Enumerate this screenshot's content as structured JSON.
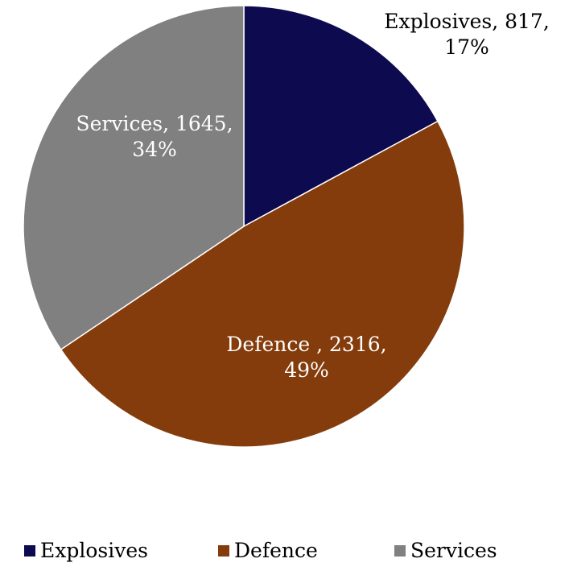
{
  "chart_data": {
    "type": "pie",
    "title": "",
    "slices": [
      {
        "name": "Explosives",
        "value": 817,
        "percent": "17%",
        "color": "#0d0a4f",
        "label_line1": "Explosives, 817,",
        "label_line2": "17%",
        "label_color": "#000000"
      },
      {
        "name": "Defence",
        "value": 2316,
        "percent": "49%",
        "color": "#843c0c",
        "label_line1": "Defence , 2316,",
        "label_line2": "49%",
        "label_color": "#ffffff"
      },
      {
        "name": "Services",
        "value": 1645,
        "percent": "34%",
        "color": "#808080",
        "label_line1": "Services, 1645,",
        "label_line2": "34%",
        "label_color": "#ffffff"
      }
    ],
    "legend": {
      "placement": "bottom",
      "entries": [
        "Explosives",
        "Defence",
        "Services"
      ]
    }
  }
}
